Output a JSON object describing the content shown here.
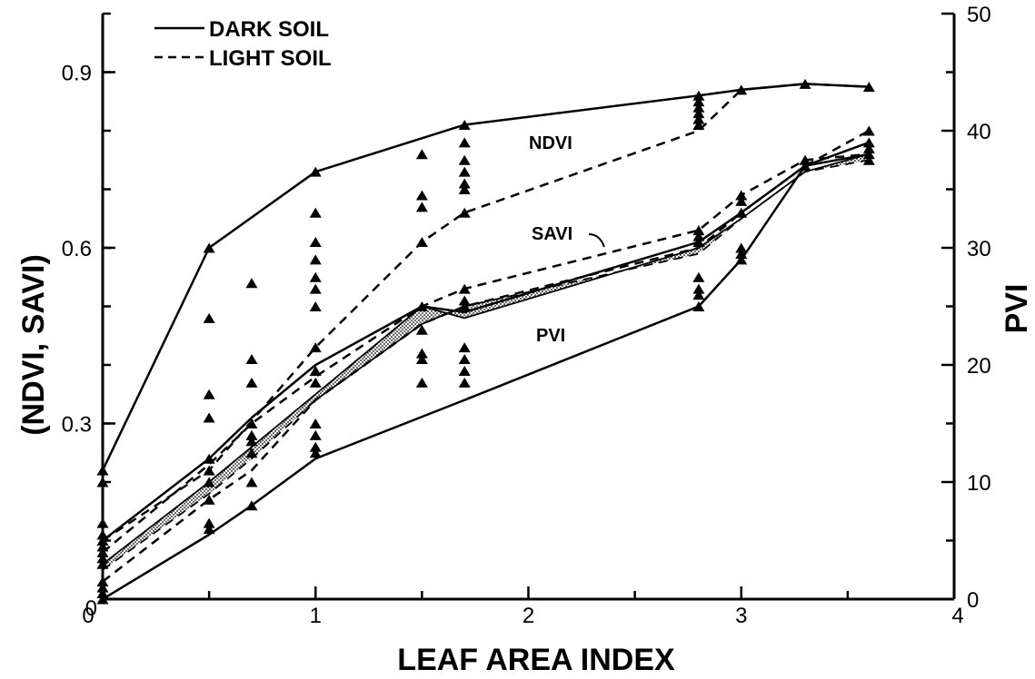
{
  "chart_data": {
    "type": "line",
    "xlabel": "LEAF AREA INDEX",
    "ylabel_left": "(NDVI, SAVI)",
    "ylabel_right": "PVI",
    "xlim": [
      0,
      4
    ],
    "ylim_left": [
      0,
      1.0
    ],
    "ylim_right": [
      0,
      50
    ],
    "x_ticks": [
      "0",
      "1",
      "2",
      "3",
      "4"
    ],
    "y_left_ticks": [
      "0",
      "0.3",
      "0.6",
      "0.9"
    ],
    "y_right_ticks": [
      "0",
      "10",
      "20",
      "30",
      "40",
      "50"
    ],
    "legend": {
      "dark": "DARK SOIL",
      "light": "LIGHT SOIL"
    },
    "annotations": {
      "ndvi": "NDVI",
      "savi": "SAVI",
      "pvi": "PVI"
    },
    "series": [
      {
        "name": "NDVI",
        "soil": "dark",
        "x": [
          0,
          0.5,
          1,
          1.7,
          2.8,
          3,
          3.3,
          3.6
        ],
        "y": [
          0.22,
          0.6,
          0.73,
          0.81,
          0.86,
          0.87,
          0.88,
          0.875
        ]
      },
      {
        "name": "NDVI",
        "soil": "light",
        "x": [
          0,
          0.5,
          1,
          1.5,
          1.7,
          2.8,
          3,
          3.3,
          3.6
        ],
        "y": [
          0.1,
          0.22,
          0.43,
          0.61,
          0.66,
          0.8,
          0.87,
          0.88,
          0.875
        ]
      },
      {
        "name": "SAVI",
        "soil": "dark",
        "x": [
          0,
          0.5,
          0.7,
          1,
          1.5,
          1.7,
          2.8,
          3,
          3.3,
          3.6
        ],
        "y": [
          0.1,
          0.24,
          0.31,
          0.4,
          0.5,
          0.49,
          0.61,
          0.66,
          0.74,
          0.78
        ]
      },
      {
        "name": "SAVI",
        "soil": "light",
        "x": [
          0,
          0.5,
          0.7,
          1,
          1.5,
          1.7,
          2.8,
          3,
          3.3,
          3.6
        ],
        "y": [
          0.08,
          0.23,
          0.3,
          0.38,
          0.5,
          0.53,
          0.63,
          0.69,
          0.75,
          0.76
        ]
      },
      {
        "name": "PVI",
        "soil": "dark",
        "x": [
          0,
          0.5,
          0.7,
          1,
          1.7,
          2.8,
          3,
          3.3,
          3.6
        ],
        "y": [
          0,
          5.5,
          8,
          12,
          17,
          25,
          29,
          37,
          38
        ]
      },
      {
        "name": "PVI",
        "soil": "light",
        "x": [
          0,
          0.5,
          0.7,
          1,
          1.5,
          1.7,
          2.8,
          3,
          3.3,
          3.6
        ],
        "y": [
          1.5,
          8.5,
          11,
          17,
          23.5,
          25,
          30,
          33,
          37,
          40
        ]
      },
      {
        "name": "SAVI band",
        "soil": "dark",
        "x": [
          0,
          0.5,
          0.7,
          1,
          1.5,
          1.7,
          2.8,
          3,
          3.3,
          3.6
        ],
        "y": [
          0.06,
          0.2,
          0.26,
          0.35,
          0.5,
          0.48,
          0.6,
          0.65,
          0.73,
          0.76
        ]
      },
      {
        "name": "SAVI band",
        "soil": "light",
        "x": [
          0,
          0.5,
          0.7,
          1,
          1.5,
          1.7,
          2.8,
          3,
          3.3,
          3.6
        ],
        "y": [
          0.05,
          0.18,
          0.24,
          0.34,
          0.47,
          0.5,
          0.59,
          0.65,
          0.73,
          0.75
        ]
      }
    ],
    "points": [
      [
        0,
        0.22
      ],
      [
        0,
        0.2
      ],
      [
        0,
        0.13
      ],
      [
        0,
        0.11
      ],
      [
        0,
        0.1
      ],
      [
        0,
        0.09
      ],
      [
        0,
        0.08
      ],
      [
        0,
        0.07
      ],
      [
        0,
        0.06
      ],
      [
        0,
        0.03
      ],
      [
        0,
        0.02
      ],
      [
        0,
        0.01
      ],
      [
        0,
        0.0
      ],
      [
        0.5,
        0.6
      ],
      [
        0.5,
        0.48
      ],
      [
        0.5,
        0.35
      ],
      [
        0.5,
        0.31
      ],
      [
        0.5,
        0.24
      ],
      [
        0.5,
        0.22
      ],
      [
        0.5,
        0.2
      ],
      [
        0.5,
        0.17
      ],
      [
        0.5,
        0.13
      ],
      [
        0.5,
        0.12
      ],
      [
        0.7,
        0.54
      ],
      [
        0.7,
        0.41
      ],
      [
        0.7,
        0.37
      ],
      [
        0.7,
        0.3
      ],
      [
        0.7,
        0.28
      ],
      [
        0.7,
        0.27
      ],
      [
        0.7,
        0.25
      ],
      [
        0.7,
        0.2
      ],
      [
        0.7,
        0.16
      ],
      [
        1,
        0.73
      ],
      [
        1,
        0.66
      ],
      [
        1,
        0.61
      ],
      [
        1,
        0.58
      ],
      [
        1,
        0.55
      ],
      [
        1,
        0.53
      ],
      [
        1,
        0.5
      ],
      [
        1,
        0.43
      ],
      [
        1,
        0.39
      ],
      [
        1,
        0.37
      ],
      [
        1,
        0.3
      ],
      [
        1,
        0.28
      ],
      [
        1,
        0.26
      ],
      [
        1,
        0.25
      ],
      [
        1.5,
        0.76
      ],
      [
        1.5,
        0.69
      ],
      [
        1.5,
        0.67
      ],
      [
        1.5,
        0.61
      ],
      [
        1.5,
        0.5
      ],
      [
        1.5,
        0.46
      ],
      [
        1.5,
        0.42
      ],
      [
        1.5,
        0.41
      ],
      [
        1.5,
        0.37
      ],
      [
        1.7,
        0.81
      ],
      [
        1.7,
        0.78
      ],
      [
        1.7,
        0.75
      ],
      [
        1.7,
        0.73
      ],
      [
        1.7,
        0.71
      ],
      [
        1.7,
        0.7
      ],
      [
        1.7,
        0.66
      ],
      [
        1.7,
        0.53
      ],
      [
        1.7,
        0.51
      ],
      [
        1.7,
        0.5
      ],
      [
        1.7,
        0.43
      ],
      [
        1.7,
        0.41
      ],
      [
        1.7,
        0.39
      ],
      [
        1.7,
        0.37
      ],
      [
        2.8,
        0.86
      ],
      [
        2.8,
        0.85
      ],
      [
        2.8,
        0.84
      ],
      [
        2.8,
        0.83
      ],
      [
        2.8,
        0.82
      ],
      [
        2.8,
        0.81
      ],
      [
        2.8,
        0.63
      ],
      [
        2.8,
        0.62
      ],
      [
        2.8,
        0.61
      ],
      [
        2.8,
        0.55
      ],
      [
        2.8,
        0.53
      ],
      [
        2.8,
        0.52
      ],
      [
        2.8,
        0.5
      ],
      [
        3,
        0.87
      ],
      [
        3,
        0.69
      ],
      [
        3,
        0.68
      ],
      [
        3,
        0.66
      ],
      [
        3,
        0.6
      ],
      [
        3,
        0.59
      ],
      [
        3,
        0.58
      ],
      [
        3.3,
        0.88
      ],
      [
        3.3,
        0.75
      ],
      [
        3.3,
        0.74
      ],
      [
        3.6,
        0.875
      ],
      [
        3.6,
        0.8
      ],
      [
        3.6,
        0.78
      ],
      [
        3.6,
        0.77
      ],
      [
        3.6,
        0.76
      ],
      [
        3.6,
        0.75
      ]
    ]
  }
}
